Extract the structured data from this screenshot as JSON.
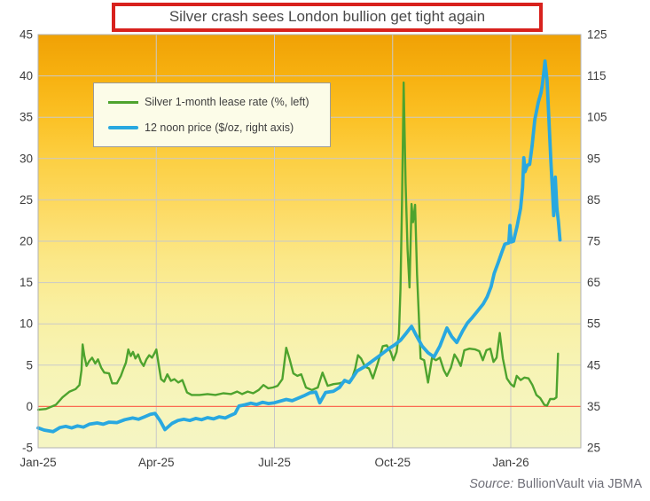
{
  "title": "Silver crash sees London bullion get tight again",
  "legend": {
    "series1_label": "Silver 1-month lease rate (%, left)",
    "series2_label": "12 noon price ($/oz, right axis)"
  },
  "source": {
    "prefix": "Source:",
    "text": " BullionVault via JBMA"
  },
  "colors": {
    "lease_green": "#4ea32e",
    "price_blue": "#29a8e0",
    "zero_line_red": "#fb6b52",
    "title_border_red": "#d8211d",
    "grid_gray": "#c9c9c9",
    "plot_border_gray": "#b2b2b2",
    "axis_text": "#3d3d3d",
    "gradient_top": "#f0a105",
    "gradient_bottom": "#f5f5c3"
  },
  "axes": {
    "left": {
      "ticks": [
        45,
        40,
        35,
        30,
        25,
        20,
        15,
        10,
        5,
        0,
        -5
      ],
      "range": [
        -5,
        45
      ],
      "gridline_values": [
        40,
        35,
        30,
        25,
        20,
        15,
        10,
        5
      ]
    },
    "right": {
      "ticks": [
        125,
        115,
        105,
        95,
        85,
        75,
        65,
        55,
        45,
        35,
        25
      ],
      "range": [
        25,
        125
      ]
    },
    "x": {
      "ticks": [
        {
          "label": "Jan-25",
          "month": 0
        },
        {
          "label": "Apr-25",
          "month": 3
        },
        {
          "label": "Jul-25",
          "month": 6
        },
        {
          "label": "Oct-25",
          "month": 9
        },
        {
          "label": "Jan-26",
          "month": 12
        }
      ],
      "gridline_months": [
        3,
        6,
        9,
        12
      ]
    }
  },
  "chart_data": {
    "type": "line",
    "x_unit": "months since Jan-2025",
    "title": "Silver crash sees London bullion get tight again",
    "left_ylim": [
      -5,
      45
    ],
    "right_ylim": [
      25,
      125
    ],
    "zero_reference_line_left_value": 0,
    "series": [
      {
        "name": "Silver 1-month lease rate (%, left)",
        "axis": "left",
        "color": "#4ea32e",
        "width": 2.4,
        "points": [
          [
            0,
            -0.4
          ],
          [
            0.2,
            -0.3
          ],
          [
            0.45,
            0.2
          ],
          [
            0.62,
            1.1
          ],
          [
            0.8,
            1.8
          ],
          [
            0.95,
            2.1
          ],
          [
            1.05,
            2.6
          ],
          [
            1.1,
            4.4
          ],
          [
            1.13,
            7.5
          ],
          [
            1.17,
            6.2
          ],
          [
            1.23,
            4.9
          ],
          [
            1.3,
            5.5
          ],
          [
            1.37,
            5.9
          ],
          [
            1.45,
            5.2
          ],
          [
            1.52,
            5.7
          ],
          [
            1.6,
            4.7
          ],
          [
            1.68,
            4.1
          ],
          [
            1.8,
            4.0
          ],
          [
            1.88,
            2.8
          ],
          [
            2.0,
            2.8
          ],
          [
            2.1,
            3.7
          ],
          [
            2.17,
            4.6
          ],
          [
            2.23,
            5.3
          ],
          [
            2.29,
            6.9
          ],
          [
            2.35,
            6.1
          ],
          [
            2.41,
            6.6
          ],
          [
            2.47,
            5.8
          ],
          [
            2.54,
            6.3
          ],
          [
            2.61,
            5.4
          ],
          [
            2.68,
            4.9
          ],
          [
            2.75,
            5.7
          ],
          [
            2.82,
            6.2
          ],
          [
            2.89,
            5.9
          ],
          [
            2.95,
            6.4
          ],
          [
            3.0,
            6.9
          ],
          [
            3.06,
            5.1
          ],
          [
            3.12,
            3.3
          ],
          [
            3.2,
            3.0
          ],
          [
            3.28,
            3.9
          ],
          [
            3.37,
            3.1
          ],
          [
            3.46,
            3.3
          ],
          [
            3.56,
            2.9
          ],
          [
            3.66,
            3.2
          ],
          [
            3.78,
            1.7
          ],
          [
            3.9,
            1.4
          ],
          [
            4.1,
            1.4
          ],
          [
            4.3,
            1.5
          ],
          [
            4.5,
            1.4
          ],
          [
            4.7,
            1.6
          ],
          [
            4.9,
            1.5
          ],
          [
            5.05,
            1.8
          ],
          [
            5.18,
            1.5
          ],
          [
            5.32,
            1.8
          ],
          [
            5.46,
            1.6
          ],
          [
            5.6,
            2.0
          ],
          [
            5.72,
            2.6
          ],
          [
            5.84,
            2.2
          ],
          [
            5.96,
            2.3
          ],
          [
            6.08,
            2.5
          ],
          [
            6.2,
            3.3
          ],
          [
            6.3,
            7.1
          ],
          [
            6.38,
            5.8
          ],
          [
            6.48,
            4.0
          ],
          [
            6.58,
            3.7
          ],
          [
            6.68,
            3.9
          ],
          [
            6.8,
            2.3
          ],
          [
            6.95,
            2.0
          ],
          [
            7.1,
            2.3
          ],
          [
            7.22,
            4.1
          ],
          [
            7.35,
            2.5
          ],
          [
            7.5,
            2.7
          ],
          [
            7.65,
            2.8
          ],
          [
            7.8,
            3.0
          ],
          [
            7.95,
            3.1
          ],
          [
            8.05,
            4.6
          ],
          [
            8.12,
            6.2
          ],
          [
            8.2,
            5.8
          ],
          [
            8.3,
            4.8
          ],
          [
            8.4,
            4.6
          ],
          [
            8.5,
            3.4
          ],
          [
            8.62,
            5.2
          ],
          [
            8.75,
            7.3
          ],
          [
            8.85,
            7.4
          ],
          [
            8.95,
            6.6
          ],
          [
            9.02,
            5.6
          ],
          [
            9.1,
            6.6
          ],
          [
            9.16,
            8.8
          ],
          [
            9.2,
            14.2
          ],
          [
            9.24,
            25
          ],
          [
            9.28,
            39.2
          ],
          [
            9.33,
            27
          ],
          [
            9.38,
            19
          ],
          [
            9.43,
            14.4
          ],
          [
            9.48,
            24.5
          ],
          [
            9.52,
            22.3
          ],
          [
            9.57,
            24.4
          ],
          [
            9.62,
            16
          ],
          [
            9.66,
            11.5
          ],
          [
            9.71,
            5.8
          ],
          [
            9.8,
            5.6
          ],
          [
            9.9,
            2.9
          ],
          [
            10.0,
            5.9
          ],
          [
            10.1,
            5.6
          ],
          [
            10.2,
            5.9
          ],
          [
            10.3,
            4.4
          ],
          [
            10.38,
            3.7
          ],
          [
            10.48,
            4.7
          ],
          [
            10.57,
            6.3
          ],
          [
            10.65,
            5.7
          ],
          [
            10.73,
            4.9
          ],
          [
            10.82,
            6.8
          ],
          [
            10.95,
            7.0
          ],
          [
            11.1,
            6.9
          ],
          [
            11.2,
            6.7
          ],
          [
            11.29,
            5.6
          ],
          [
            11.38,
            6.8
          ],
          [
            11.48,
            7.0
          ],
          [
            11.56,
            5.4
          ],
          [
            11.64,
            5.9
          ],
          [
            11.72,
            8.9
          ],
          [
            11.8,
            5.8
          ],
          [
            11.9,
            3.4
          ],
          [
            12.0,
            2.7
          ],
          [
            12.08,
            2.4
          ],
          [
            12.15,
            3.7
          ],
          [
            12.25,
            3.2
          ],
          [
            12.35,
            3.5
          ],
          [
            12.45,
            3.4
          ],
          [
            12.55,
            2.6
          ],
          [
            12.65,
            1.4
          ],
          [
            12.75,
            1.0
          ],
          [
            12.85,
            0.2
          ],
          [
            12.92,
            0.1
          ],
          [
            13.0,
            0.9
          ],
          [
            13.1,
            0.9
          ],
          [
            13.16,
            1.1
          ],
          [
            13.2,
            6.4
          ]
        ]
      },
      {
        "name": "12 noon price ($/oz, right axis)",
        "axis": "right",
        "color": "#29a8e0",
        "width": 3.8,
        "points": [
          [
            0,
            29.8
          ],
          [
            0.15,
            29.3
          ],
          [
            0.38,
            28.9
          ],
          [
            0.55,
            29.9
          ],
          [
            0.7,
            30.2
          ],
          [
            0.85,
            29.8
          ],
          [
            1.0,
            30.3
          ],
          [
            1.15,
            30.0
          ],
          [
            1.3,
            30.7
          ],
          [
            1.5,
            31.0
          ],
          [
            1.65,
            30.7
          ],
          [
            1.8,
            31.2
          ],
          [
            2.0,
            31.1
          ],
          [
            2.2,
            31.8
          ],
          [
            2.4,
            32.2
          ],
          [
            2.55,
            31.9
          ],
          [
            2.7,
            32.5
          ],
          [
            2.85,
            33.1
          ],
          [
            2.97,
            33.3
          ],
          [
            3.1,
            31.5
          ],
          [
            3.22,
            29.4
          ],
          [
            3.4,
            30.9
          ],
          [
            3.55,
            31.6
          ],
          [
            3.7,
            31.9
          ],
          [
            3.85,
            31.6
          ],
          [
            4.0,
            32.1
          ],
          [
            4.15,
            31.8
          ],
          [
            4.3,
            32.3
          ],
          [
            4.45,
            32.0
          ],
          [
            4.6,
            32.5
          ],
          [
            4.75,
            32.2
          ],
          [
            4.9,
            32.9
          ],
          [
            5.0,
            33.3
          ],
          [
            5.1,
            35.1
          ],
          [
            5.25,
            35.4
          ],
          [
            5.4,
            35.8
          ],
          [
            5.55,
            35.5
          ],
          [
            5.7,
            36.0
          ],
          [
            5.85,
            35.7
          ],
          [
            6.0,
            35.9
          ],
          [
            6.15,
            36.3
          ],
          [
            6.3,
            36.7
          ],
          [
            6.45,
            36.4
          ],
          [
            6.6,
            37.0
          ],
          [
            6.75,
            37.6
          ],
          [
            6.9,
            38.3
          ],
          [
            7.05,
            38.5
          ],
          [
            7.15,
            35.9
          ],
          [
            7.3,
            38.4
          ],
          [
            7.5,
            38.7
          ],
          [
            7.65,
            39.6
          ],
          [
            7.78,
            41.3
          ],
          [
            7.9,
            40.8
          ],
          [
            8.1,
            43.6
          ],
          [
            8.3,
            44.7
          ],
          [
            8.5,
            46.1
          ],
          [
            8.7,
            47.5
          ],
          [
            8.9,
            49.0
          ],
          [
            9.05,
            49.9
          ],
          [
            9.2,
            51.0
          ],
          [
            9.35,
            52.8
          ],
          [
            9.48,
            54.4
          ],
          [
            9.6,
            52.2
          ],
          [
            9.75,
            49.6
          ],
          [
            9.9,
            48.0
          ],
          [
            10.05,
            47.0
          ],
          [
            10.2,
            49.6
          ],
          [
            10.38,
            54.0
          ],
          [
            10.5,
            51.9
          ],
          [
            10.63,
            50.5
          ],
          [
            10.78,
            53.3
          ],
          [
            10.9,
            55.2
          ],
          [
            11.02,
            56.5
          ],
          [
            11.15,
            58.0
          ],
          [
            11.3,
            59.8
          ],
          [
            11.4,
            61.5
          ],
          [
            11.5,
            64.0
          ],
          [
            11.58,
            67.2
          ],
          [
            11.68,
            69.8
          ],
          [
            11.78,
            72.5
          ],
          [
            11.85,
            74.3
          ],
          [
            11.95,
            74.6
          ],
          [
            11.98,
            78.8
          ],
          [
            12.01,
            74.8
          ],
          [
            12.07,
            75.0
          ],
          [
            12.16,
            78.6
          ],
          [
            12.25,
            83.0
          ],
          [
            12.3,
            88.0
          ],
          [
            12.33,
            95.2
          ],
          [
            12.36,
            91.8
          ],
          [
            12.42,
            93.4
          ],
          [
            12.48,
            93.6
          ],
          [
            12.54,
            98.0
          ],
          [
            12.61,
            104.4
          ],
          [
            12.7,
            108.7
          ],
          [
            12.77,
            111.0
          ],
          [
            12.8,
            112.8
          ],
          [
            12.83,
            115.2
          ],
          [
            12.87,
            118.6
          ],
          [
            12.92,
            114.0
          ],
          [
            12.97,
            104.0
          ],
          [
            13.02,
            94.0
          ],
          [
            13.06,
            87.0
          ],
          [
            13.09,
            81.2
          ],
          [
            13.13,
            90.5
          ],
          [
            13.17,
            83.0
          ],
          [
            13.21,
            79.8
          ],
          [
            13.25,
            75.3
          ]
        ]
      }
    ]
  }
}
